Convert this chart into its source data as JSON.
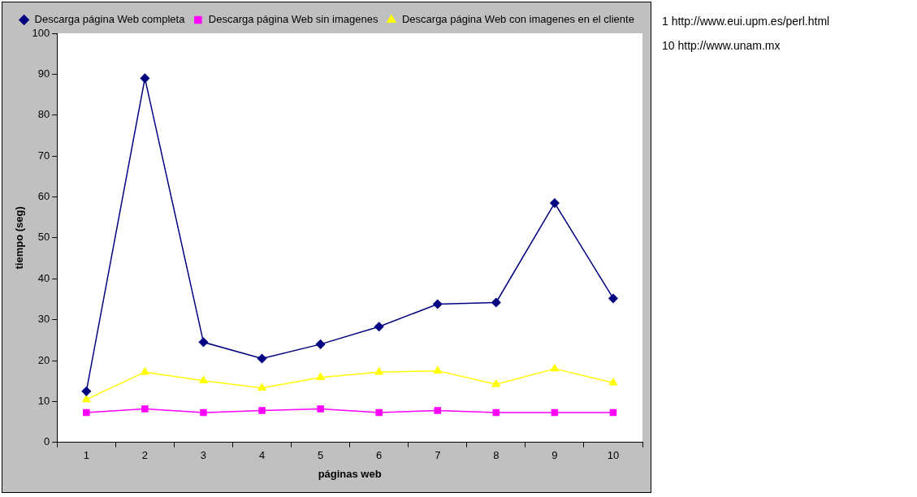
{
  "chart_data": {
    "type": "line",
    "xlabel": "páginas web",
    "ylabel": "tiempo (seg)",
    "categories": [
      "1",
      "2",
      "3",
      "4",
      "5",
      "6",
      "7",
      "8",
      "9",
      "10"
    ],
    "series": [
      {
        "name": "Descarga página Web completa",
        "color": "#000080",
        "marker": "diamond",
        "values": [
          12.5,
          89,
          24.5,
          20.5,
          24,
          28.3,
          33.8,
          34.2,
          58.5,
          35.2
        ]
      },
      {
        "name": "Descarga página Web sin imagenes",
        "color": "#ff00ff",
        "marker": "square",
        "values": [
          7.3,
          8.2,
          7.3,
          7.8,
          8.2,
          7.3,
          7.8,
          7.3,
          7.3,
          7.3
        ]
      },
      {
        "name": "Descarga página Web con imagenes en el cliente",
        "color": "#ffff00",
        "marker": "triangle",
        "values": [
          10.5,
          17.2,
          15.1,
          13.3,
          15.9,
          17.2,
          17.5,
          14.2,
          18,
          14.6
        ]
      }
    ],
    "ylim": [
      0,
      100
    ],
    "yticks": [
      0,
      10,
      20,
      30,
      40,
      50,
      60,
      70,
      80,
      90,
      100
    ],
    "grid": false,
    "legend": "top",
    "annotations": [
      "1 http://www.eui.upm.es/perl.html",
      "10 http://www.unam.mx"
    ]
  }
}
